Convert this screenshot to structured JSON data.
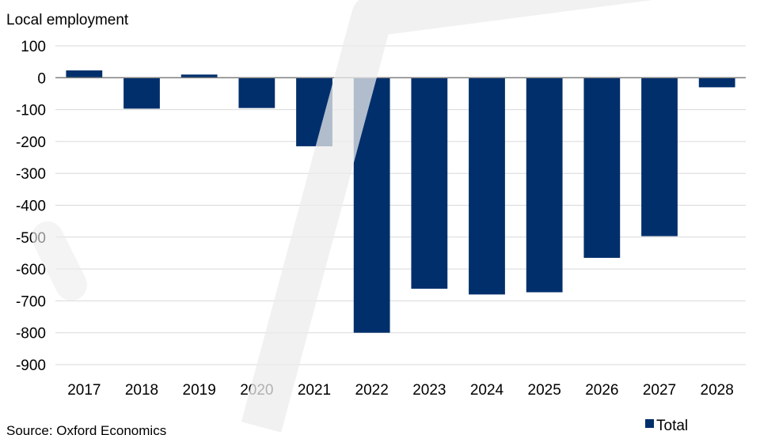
{
  "chart_data": {
    "type": "bar",
    "ylabel": "Local employment",
    "categories": [
      "2017",
      "2018",
      "2019",
      "2020",
      "2021",
      "2022",
      "2023",
      "2024",
      "2025",
      "2026",
      "2027",
      "2028"
    ],
    "series": [
      {
        "name": "Total",
        "values": [
          23,
          -97,
          10,
          -95,
          -215,
          -800,
          -662,
          -680,
          -673,
          -565,
          -497,
          -30
        ]
      }
    ],
    "ylim": [
      -900,
      100
    ],
    "yticks": [
      100,
      0,
      -100,
      -200,
      -300,
      -400,
      -500,
      -600,
      -700,
      -800,
      -900
    ],
    "grid": true,
    "legend": "bottom-right",
    "colors": {
      "bar": "#002f6c",
      "grid": "#d9d9d9",
      "axis": "#808080"
    }
  },
  "source": "Source: Oxford Economics"
}
